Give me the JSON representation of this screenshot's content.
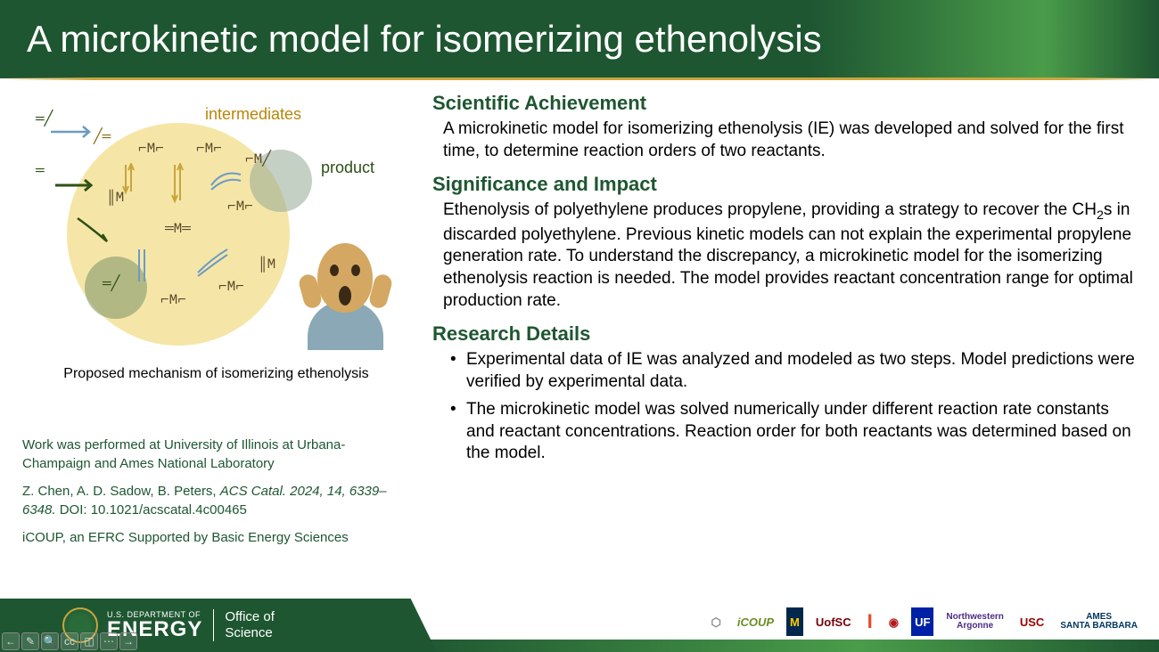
{
  "title": "A microkinetic model for isomerizing ethenolysis",
  "diagram": {
    "label_intermediates": "intermediates",
    "label_product": "product",
    "caption": "Proposed mechanism of isomerizing ethenolysis",
    "colors": {
      "big_circle": "#f5e6a8",
      "overlay_circle": "rgba(120,145,100,0.55)",
      "intermediates_text": "#b8860b",
      "product_text": "#2d5016"
    }
  },
  "attribution": {
    "work_location": "Work was performed at University of Illinois at Urbana-Champaign and Ames National Laboratory",
    "citation_authors": "Z. Chen, A. D. Sadow, B. Peters, ",
    "citation_journal": "ACS Catal. 2024, 14, 6339–6348.",
    "citation_doi": " DOI: 10.1021/acscatal.4c00465",
    "support": "iCOUP, an EFRC Supported by Basic Energy Sciences"
  },
  "sections": {
    "achievement": {
      "heading": "Scientific Achievement",
      "body": "A microkinetic model for isomerizing ethenolysis (IE) was developed and solved for the first time, to determine reaction orders of two reactants."
    },
    "significance": {
      "heading": "Significance and Impact",
      "body_pre": "Ethenolysis of polyethylene produces propylene, providing a strategy to recover the CH",
      "body_sub": "2",
      "body_post": "s in discarded polyethylene. Previous kinetic models can not explain the experimental propylene generation rate. To understand the discrepancy, a microkinetic model for the isomerizing ethenolysis reaction is needed. The model provides reactant concentration range for optimal production rate."
    },
    "details": {
      "heading": "Research Details",
      "bullets": [
        "Experimental data of IE was analyzed and modeled as two steps. Model predictions were verified by experimental data.",
        "The microkinetic model was solved numerically under different reaction rate constants and reactant concentrations. Reaction order for both reactants was determined based on the model."
      ]
    }
  },
  "footer": {
    "dept": "U.S. DEPARTMENT OF",
    "energy": "ENERGY",
    "office_line1": "Office of",
    "office_line2": "Science"
  },
  "partners": [
    {
      "text": "⬡",
      "color": "#888",
      "bg": "transparent"
    },
    {
      "text": "iCOUP",
      "color": "#6b8e23",
      "bg": "transparent",
      "style": "italic"
    },
    {
      "text": "M",
      "color": "#ffcb05",
      "bg": "#00274c"
    },
    {
      "text": "UofSC",
      "color": "#73000a",
      "bg": "transparent"
    },
    {
      "text": "I",
      "color": "#e84a27",
      "bg": "transparent",
      "size": "22px"
    },
    {
      "text": "◉",
      "color": "#b31b1b",
      "bg": "transparent"
    },
    {
      "text": "UF",
      "color": "#fff",
      "bg": "#0021a5"
    },
    {
      "text": "Northwestern\nArgonne",
      "color": "#4e2a84",
      "bg": "transparent",
      "size": "10px"
    },
    {
      "text": "USC",
      "color": "#990000",
      "bg": "transparent"
    },
    {
      "text": "AMES\nSANTA BARBARA",
      "color": "#003660",
      "bg": "transparent",
      "size": "10px"
    }
  ],
  "toolbar": [
    "←",
    "✎",
    "🔍",
    "cc",
    "◫",
    "⋯",
    "→"
  ],
  "theme": {
    "green_dark": "#1e5631",
    "green_light": "#4a9c4a",
    "gold": "#c9a53b"
  }
}
